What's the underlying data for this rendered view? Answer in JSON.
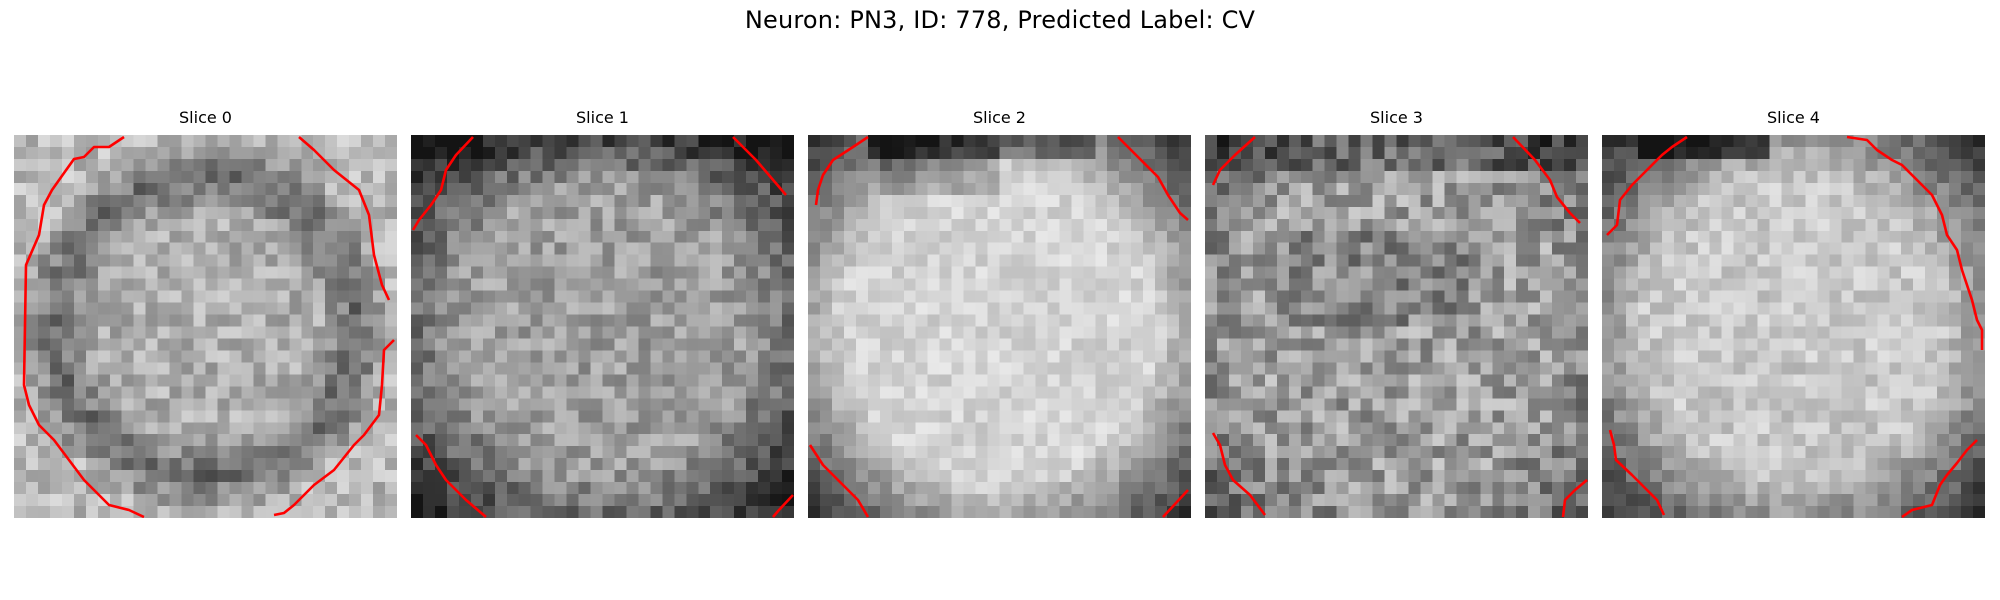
{
  "figure": {
    "title": "Neuron: PN3, ID: 778, Predicted Label: CV"
  },
  "panels": [
    {
      "title": "Slice 0",
      "pattern": "ring"
    },
    {
      "title": "Slice 1",
      "pattern": "dark-edges"
    },
    {
      "title": "Slice 2",
      "pattern": "bright-center"
    },
    {
      "title": "Slice 3",
      "pattern": "mottled"
    },
    {
      "title": "Slice 4",
      "pattern": "bright-center-light"
    }
  ],
  "colors": {
    "contour": "#ff0000",
    "background": "#ffffff"
  },
  "colormap": "gray"
}
